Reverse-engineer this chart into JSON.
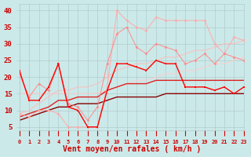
{
  "x": [
    0,
    1,
    2,
    3,
    4,
    5,
    6,
    7,
    8,
    9,
    10,
    11,
    12,
    13,
    14,
    15,
    16,
    17,
    18,
    19,
    20,
    21,
    22,
    23
  ],
  "lines": [
    {
      "y": [
        22,
        13,
        13,
        17,
        24,
        11,
        10,
        5,
        5,
        16,
        24,
        24,
        23,
        22,
        25,
        24,
        24,
        17,
        17,
        17,
        16,
        17,
        15,
        17
      ],
      "color": "#ff0000",
      "alpha": 1.0,
      "lw": 1.0,
      "marker": "s",
      "ms": 2.0,
      "zorder": 5
    },
    {
      "y": [
        9,
        8,
        10,
        10,
        9,
        5,
        5,
        5,
        5,
        17,
        40,
        37,
        35,
        34,
        38,
        37,
        37,
        37,
        37,
        37,
        30,
        27,
        32,
        31
      ],
      "color": "#ffaaaa",
      "alpha": 0.9,
      "lw": 0.8,
      "marker": "D",
      "ms": 2.0,
      "zorder": 3
    },
    {
      "y": [
        21,
        14,
        18,
        16,
        24,
        12,
        11,
        7,
        11,
        24,
        33,
        35,
        29,
        27,
        30,
        29,
        28,
        24,
        25,
        27,
        24,
        27,
        26,
        25
      ],
      "color": "#ff8888",
      "alpha": 0.85,
      "lw": 0.8,
      "marker": "D",
      "ms": 2.0,
      "zorder": 4
    },
    {
      "y": [
        9,
        10,
        12,
        14,
        16,
        16,
        17,
        17,
        18,
        20,
        22,
        23,
        24,
        24,
        25,
        26,
        26,
        27,
        28,
        28,
        29,
        30,
        30,
        31
      ],
      "color": "#ffbbbb",
      "alpha": 0.7,
      "lw": 1.0,
      "marker": null,
      "ms": 0,
      "zorder": 2
    },
    {
      "y": [
        8,
        9,
        10,
        11,
        13,
        13,
        14,
        14,
        14,
        16,
        17,
        18,
        18,
        18,
        19,
        19,
        19,
        19,
        19,
        19,
        19,
        19,
        19,
        19
      ],
      "color": "#dd2222",
      "alpha": 1.0,
      "lw": 1.0,
      "marker": null,
      "ms": 0,
      "zorder": 2
    },
    {
      "y": [
        7,
        8,
        9,
        10,
        11,
        11,
        12,
        12,
        12,
        13,
        14,
        14,
        14,
        14,
        14,
        15,
        15,
        15,
        15,
        15,
        15,
        15,
        15,
        15
      ],
      "color": "#880000",
      "alpha": 1.0,
      "lw": 1.0,
      "marker": null,
      "ms": 0,
      "zorder": 2
    },
    {
      "y": [
        15,
        15,
        15,
        15,
        15,
        15,
        15,
        15,
        15,
        16,
        17,
        18,
        19,
        19,
        20,
        21,
        21,
        22,
        22,
        23,
        24,
        24,
        25,
        26
      ],
      "color": "#ffcccc",
      "alpha": 0.7,
      "lw": 1.0,
      "marker": null,
      "ms": 0,
      "zorder": 1
    }
  ],
  "xlabel": "Vent moyen/en rafales ( km/h )",
  "ylim": [
    4,
    42
  ],
  "xlim": [
    0,
    23
  ],
  "yticks": [
    5,
    10,
    15,
    20,
    25,
    30,
    35,
    40
  ],
  "bg_color": "#cce9e9",
  "grid_color": "#b0cccc",
  "tick_color": "#cc0000",
  "label_color": "#cc0000"
}
